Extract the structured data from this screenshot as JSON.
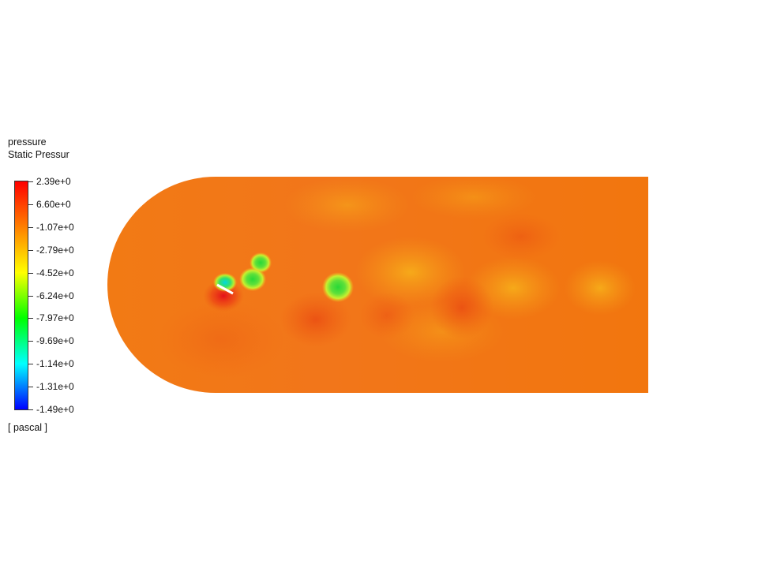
{
  "legend": {
    "title_line1": "pressure",
    "title_line2": "Static Pressur",
    "units": "[ pascal ]",
    "tick_labels": [
      "2.39e+0",
      "6.60e+0",
      "-1.07e+0",
      "-2.79e+0",
      "-4.52e+0",
      "-6.24e+0",
      "-7.97e+0",
      "-9.69e+0",
      "-1.14e+0",
      "-1.31e+0",
      "-1.49e+0"
    ],
    "colormap": [
      "#ff0000",
      "#ff8000",
      "#ffff00",
      "#00ff00",
      "#00ffff",
      "#0000ff"
    ]
  },
  "contour": {
    "background_color": "#f26b10",
    "vortex_colors": [
      "#3edc2e",
      "#9ef02a",
      "#00e8d0",
      "#ffd000"
    ],
    "high_pressure_color": "#e0201a",
    "airfoil_color": "#ffffff"
  }
}
